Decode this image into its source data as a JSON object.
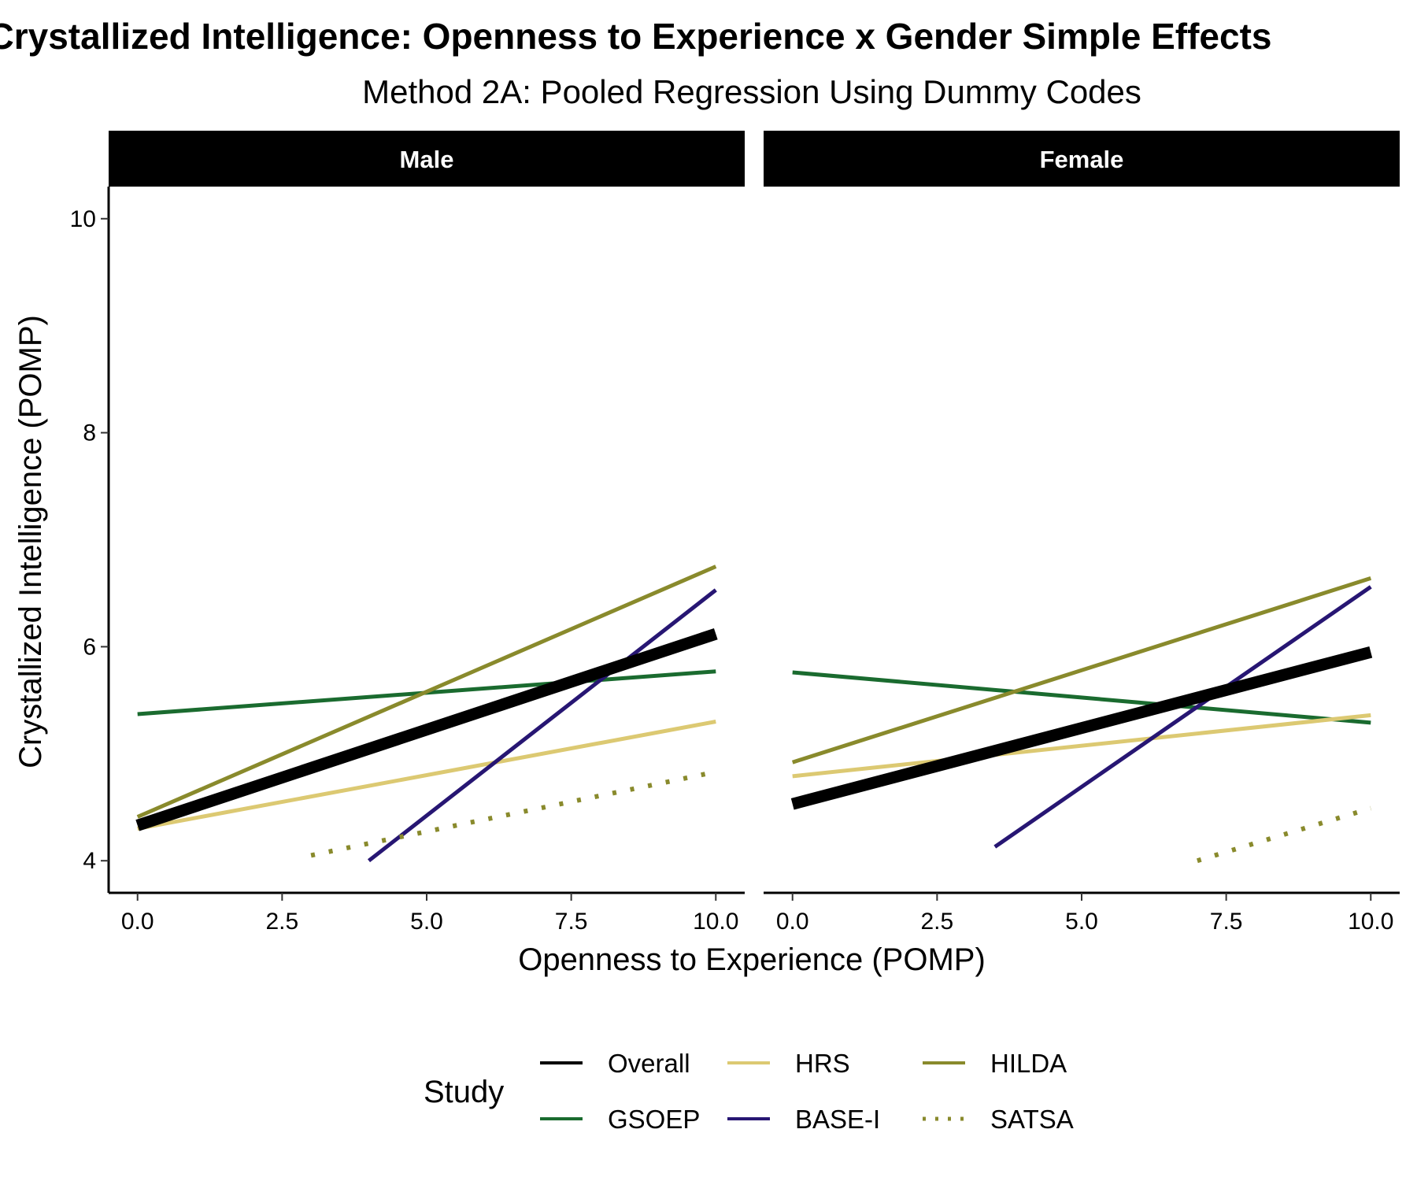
{
  "chart_data": {
    "type": "line",
    "title": "Crystallized Intelligence: Openness to Experience x Gender Simple Effects",
    "subtitle": "Method 2A: Pooled Regression Using Dummy Codes",
    "xlabel": "Openness to Experience (POMP)",
    "ylabel": "Crystallized Intelligence (POMP)",
    "xlim": [
      -0.5,
      10.5
    ],
    "ylim": [
      3.7,
      10.3
    ],
    "x_ticks": [
      "0.0",
      "2.5",
      "5.0",
      "7.5",
      "10.0"
    ],
    "x_tick_values": [
      0,
      2.5,
      5,
      7.5,
      10
    ],
    "y_ticks": [
      "4",
      "6",
      "8",
      "10"
    ],
    "y_tick_values": [
      4,
      6,
      8,
      10
    ],
    "grid": false,
    "legend": {
      "title": "Study",
      "position": "bottom",
      "entries": [
        {
          "name": "Overall",
          "color": "#000000",
          "dash": "solid"
        },
        {
          "name": "GSOEP",
          "color": "#1a6b2f",
          "dash": "solid"
        },
        {
          "name": "HRS",
          "color": "#dcc972",
          "dash": "solid"
        },
        {
          "name": "BASE-I",
          "color": "#271673",
          "dash": "solid"
        },
        {
          "name": "HILDA",
          "color": "#898a2c",
          "dash": "solid"
        },
        {
          "name": "SATSA",
          "color": "#898a2c",
          "dash": "dotted"
        }
      ]
    },
    "panels": [
      {
        "label": "Male",
        "series": [
          {
            "name": "GSOEP",
            "x": [
              0,
              10
            ],
            "y": [
              5.37,
              5.77
            ]
          },
          {
            "name": "HILDA",
            "x": [
              0,
              10
            ],
            "y": [
              4.41,
              6.75
            ]
          },
          {
            "name": "HRS",
            "x": [
              0,
              10
            ],
            "y": [
              4.3,
              5.3
            ]
          },
          {
            "name": "BASE-I",
            "x": [
              4,
              10
            ],
            "y": [
              4.0,
              6.53
            ]
          },
          {
            "name": "SATSA",
            "x": [
              3,
              10
            ],
            "y": [
              4.05,
              4.83
            ]
          },
          {
            "name": "Overall",
            "x": [
              0,
              10
            ],
            "y": [
              4.33,
              6.12
            ]
          }
        ]
      },
      {
        "label": "Female",
        "series": [
          {
            "name": "GSOEP",
            "x": [
              0,
              10
            ],
            "y": [
              5.76,
              5.29
            ]
          },
          {
            "name": "HILDA",
            "x": [
              0,
              10
            ],
            "y": [
              4.92,
              6.64
            ]
          },
          {
            "name": "HRS",
            "x": [
              0,
              10
            ],
            "y": [
              4.79,
              5.36
            ]
          },
          {
            "name": "BASE-I",
            "x": [
              3.5,
              10
            ],
            "y": [
              4.13,
              6.56
            ]
          },
          {
            "name": "SATSA",
            "x": [
              7,
              10
            ],
            "y": [
              4.0,
              4.49
            ]
          },
          {
            "name": "Overall",
            "x": [
              0,
              10
            ],
            "y": [
              4.53,
              5.95
            ]
          }
        ]
      }
    ]
  }
}
